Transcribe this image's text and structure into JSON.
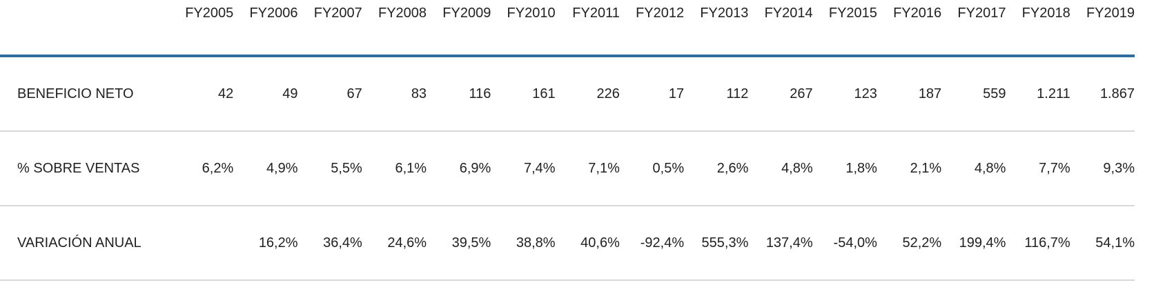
{
  "colors": {
    "header_rule": "#2e6d9e",
    "row_divider": "#d9d9d9",
    "text": "#212121",
    "background": "#ffffff"
  },
  "table": {
    "corner_label": "",
    "columns": [
      "FY2005",
      "FY2006",
      "FY2007",
      "FY2008",
      "FY2009",
      "FY2010",
      "FY2011",
      "FY2012",
      "FY2013",
      "FY2014",
      "FY2015",
      "FY2016",
      "FY2017",
      "FY2018",
      "FY2019"
    ],
    "rows": [
      {
        "label": "BENEFICIO NETO",
        "values": [
          "42",
          "49",
          "67",
          "83",
          "116",
          "161",
          "226",
          "17",
          "112",
          "267",
          "123",
          "187",
          "559",
          "1.211",
          "1.867"
        ]
      },
      {
        "label": "% SOBRE VENTAS",
        "values": [
          "6,2%",
          "4,9%",
          "5,5%",
          "6,1%",
          "6,9%",
          "7,4%",
          "7,1%",
          "0,5%",
          "2,6%",
          "4,8%",
          "1,8%",
          "2,1%",
          "4,8%",
          "7,7%",
          "9,3%"
        ]
      },
      {
        "label": "VARIACIÓN ANUAL",
        "values": [
          "",
          "16,2%",
          "36,4%",
          "24,6%",
          "39,5%",
          "38,8%",
          "40,6%",
          "-92,4%",
          "555,3%",
          "137,4%",
          "-54,0%",
          "52,2%",
          "199,4%",
          "116,7%",
          "54,1%"
        ]
      }
    ]
  },
  "chart_data": {
    "type": "table",
    "categories": [
      "FY2005",
      "FY2006",
      "FY2007",
      "FY2008",
      "FY2009",
      "FY2010",
      "FY2011",
      "FY2012",
      "FY2013",
      "FY2014",
      "FY2015",
      "FY2016",
      "FY2017",
      "FY2018",
      "FY2019"
    ],
    "series": [
      {
        "name": "BENEFICIO NETO",
        "unit": "absolute",
        "values": [
          42,
          49,
          67,
          83,
          116,
          161,
          226,
          17,
          112,
          267,
          123,
          187,
          559,
          1211,
          1867
        ]
      },
      {
        "name": "% SOBRE VENTAS",
        "unit": "percent",
        "values": [
          6.2,
          4.9,
          5.5,
          6.1,
          6.9,
          7.4,
          7.1,
          0.5,
          2.6,
          4.8,
          1.8,
          2.1,
          4.8,
          7.7,
          9.3
        ]
      },
      {
        "name": "VARIACIÓN ANUAL",
        "unit": "percent",
        "values": [
          null,
          16.2,
          36.4,
          24.6,
          39.5,
          38.8,
          40.6,
          -92.4,
          555.3,
          137.4,
          -54.0,
          52.2,
          199.4,
          116.7,
          54.1
        ]
      }
    ],
    "title": "",
    "layout": {
      "grid": "horizontal-row-dividers",
      "header_rule_color": "#2e6d9e",
      "number_alignment": "right",
      "locale": "es (comma decimals, dot thousands)"
    }
  }
}
